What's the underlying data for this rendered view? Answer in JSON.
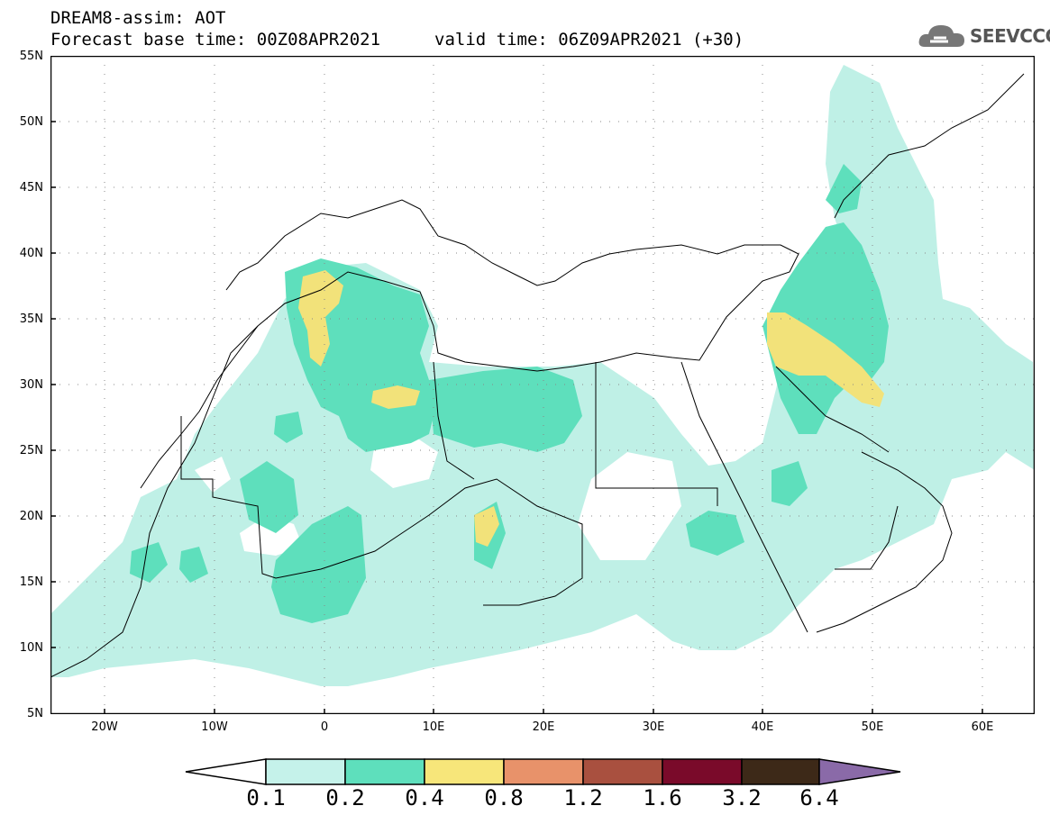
{
  "header": {
    "model_line": "DREAM8-assim: AOT",
    "base_time_line": "Forecast base time: 00Z08APR2021",
    "valid_time_line": "valid time: 06Z09APR2021 (+30)"
  },
  "logo": {
    "text": "SEEVCCC",
    "icon": "cloud-icon"
  },
  "map": {
    "lat_labels": [
      "55N",
      "50N",
      "45N",
      "40N",
      "35N",
      "30N",
      "25N",
      "20N",
      "15N",
      "10N",
      "5N"
    ],
    "lon_labels": [
      "20W",
      "10W",
      "0",
      "10E",
      "20E",
      "30E",
      "40E",
      "50E",
      "60E"
    ],
    "grid": "dotted",
    "fill_colors": {
      "c01": "#bff0e6",
      "c02": "#5edfbc",
      "c04": "#f2e27a"
    }
  },
  "colorbar": {
    "labels": [
      "0.1",
      "0.2",
      "0.4",
      "0.8",
      "1.2",
      "1.6",
      "3.2",
      "6.4"
    ],
    "colors": [
      "#ffffff",
      "#c5f2ea",
      "#5edfbc",
      "#f7e67a",
      "#e8926a",
      "#a9503f",
      "#7a0a2a",
      "#3d2918",
      "#8a6aa8"
    ]
  }
}
